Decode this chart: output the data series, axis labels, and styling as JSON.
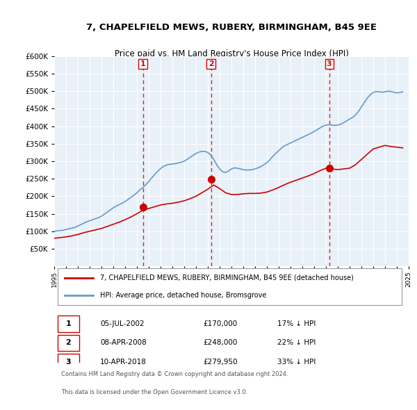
{
  "title": "7, CHAPELFIELD MEWS, RUBERY, BIRMINGHAM, B45 9EE",
  "subtitle": "Price paid vs. HM Land Registry's House Price Index (HPI)",
  "xlabel": "",
  "ylabel": "",
  "ylim": [
    0,
    600000
  ],
  "yticks": [
    0,
    50000,
    100000,
    150000,
    200000,
    250000,
    300000,
    350000,
    400000,
    450000,
    500000,
    550000,
    600000
  ],
  "background_color": "#ffffff",
  "plot_bg_color": "#e8f0f8",
  "grid_color": "#ffffff",
  "sale_color": "#cc0000",
  "hpi_color": "#6699cc",
  "marker_color": "#cc0000",
  "vline_color": "#cc0000",
  "legend_label_sale": "7, CHAPELFIELD MEWS, RUBERY, BIRMINGHAM, B45 9EE (detached house)",
  "legend_label_hpi": "HPI: Average price, detached house, Bromsgrove",
  "transactions": [
    {
      "label": "1",
      "date": "05-JUL-2002",
      "price": 170000,
      "hpi_pct": "17%",
      "x": 2002.5
    },
    {
      "label": "2",
      "date": "08-APR-2008",
      "price": 248000,
      "hpi_pct": "22%",
      "x": 2008.27
    },
    {
      "label": "3",
      "date": "10-APR-2018",
      "price": 279950,
      "hpi_pct": "33%",
      "x": 2018.27
    }
  ],
  "footer_line1": "Contains HM Land Registry data © Crown copyright and database right 2024.",
  "footer_line2": "This data is licensed under the Open Government Licence v3.0.",
  "hpi_data_x": [
    1995,
    1995.25,
    1995.5,
    1995.75,
    1996,
    1996.25,
    1996.5,
    1996.75,
    1997,
    1997.25,
    1997.5,
    1997.75,
    1998,
    1998.25,
    1998.5,
    1998.75,
    1999,
    1999.25,
    1999.5,
    1999.75,
    2000,
    2000.25,
    2000.5,
    2000.75,
    2001,
    2001.25,
    2001.5,
    2001.75,
    2002,
    2002.25,
    2002.5,
    2002.75,
    2003,
    2003.25,
    2003.5,
    2003.75,
    2004,
    2004.25,
    2004.5,
    2004.75,
    2005,
    2005.25,
    2005.5,
    2005.75,
    2006,
    2006.25,
    2006.5,
    2006.75,
    2007,
    2007.25,
    2007.5,
    2007.75,
    2008,
    2008.25,
    2008.5,
    2008.75,
    2009,
    2009.25,
    2009.5,
    2009.75,
    2010,
    2010.25,
    2010.5,
    2010.75,
    2011,
    2011.25,
    2011.5,
    2011.75,
    2012,
    2012.25,
    2012.5,
    2012.75,
    2013,
    2013.25,
    2013.5,
    2013.75,
    2014,
    2014.25,
    2014.5,
    2014.75,
    2015,
    2015.25,
    2015.5,
    2015.75,
    2016,
    2016.25,
    2016.5,
    2016.75,
    2017,
    2017.25,
    2017.5,
    2017.75,
    2018,
    2018.25,
    2018.5,
    2018.75,
    2019,
    2019.25,
    2019.5,
    2019.75,
    2020,
    2020.25,
    2020.5,
    2020.75,
    2021,
    2021.25,
    2021.5,
    2021.75,
    2022,
    2022.25,
    2022.5,
    2022.75,
    2023,
    2023.25,
    2023.5,
    2023.75,
    2024,
    2024.25,
    2024.5
  ],
  "hpi_data_y": [
    100000,
    101000,
    102000,
    103000,
    105000,
    107000,
    109000,
    111000,
    115000,
    119000,
    123000,
    127000,
    130000,
    133000,
    136000,
    139000,
    143000,
    149000,
    155000,
    161000,
    167000,
    172000,
    176000,
    180000,
    185000,
    191000,
    197000,
    203000,
    210000,
    218000,
    225000,
    233000,
    242000,
    252000,
    262000,
    271000,
    279000,
    285000,
    289000,
    291000,
    292000,
    293000,
    295000,
    297000,
    300000,
    305000,
    311000,
    317000,
    322000,
    326000,
    328000,
    328000,
    325000,
    318000,
    305000,
    290000,
    278000,
    270000,
    268000,
    272000,
    278000,
    281000,
    280000,
    278000,
    276000,
    275000,
    275000,
    276000,
    278000,
    281000,
    285000,
    290000,
    296000,
    304000,
    314000,
    322000,
    330000,
    338000,
    344000,
    348000,
    352000,
    356000,
    360000,
    364000,
    368000,
    372000,
    376000,
    380000,
    385000,
    390000,
    395000,
    400000,
    403000,
    404000,
    403000,
    402000,
    403000,
    406000,
    410000,
    415000,
    420000,
    425000,
    432000,
    442000,
    455000,
    468000,
    480000,
    490000,
    496000,
    499000,
    498000,
    497000,
    498000,
    500000,
    499000,
    497000,
    495000,
    496000,
    498000
  ],
  "sale_data_x": [
    1995,
    1995.5,
    1996,
    1996.5,
    1997,
    1997.5,
    1998,
    1998.5,
    1999,
    1999.5,
    2000,
    2000.5,
    2001,
    2001.5,
    2002,
    2002.5,
    2003,
    2003.5,
    2004,
    2004.5,
    2005,
    2005.5,
    2006,
    2006.5,
    2007,
    2007.5,
    2008,
    2008.5,
    2009,
    2009.5,
    2010,
    2010.5,
    2011,
    2011.5,
    2012,
    2012.5,
    2013,
    2013.5,
    2014,
    2014.5,
    2015,
    2015.5,
    2016,
    2016.5,
    2017,
    2017.5,
    2018,
    2018.5,
    2019,
    2019.5,
    2020,
    2020.5,
    2021,
    2021.5,
    2022,
    2022.5,
    2023,
    2023.5,
    2024,
    2024.5
  ],
  "sale_data_y": [
    80000,
    82000,
    84000,
    87000,
    91000,
    96000,
    100000,
    104000,
    108000,
    114000,
    120000,
    126000,
    133000,
    141000,
    150000,
    160000,
    165000,
    170000,
    175000,
    178000,
    180000,
    183000,
    187000,
    193000,
    200000,
    210000,
    220000,
    232000,
    222000,
    210000,
    205000,
    205000,
    207000,
    208000,
    208000,
    209000,
    212000,
    218000,
    225000,
    233000,
    240000,
    246000,
    252000,
    258000,
    265000,
    273000,
    280000,
    278000,
    276000,
    278000,
    280000,
    290000,
    305000,
    320000,
    335000,
    340000,
    345000,
    342000,
    340000,
    338000
  ]
}
